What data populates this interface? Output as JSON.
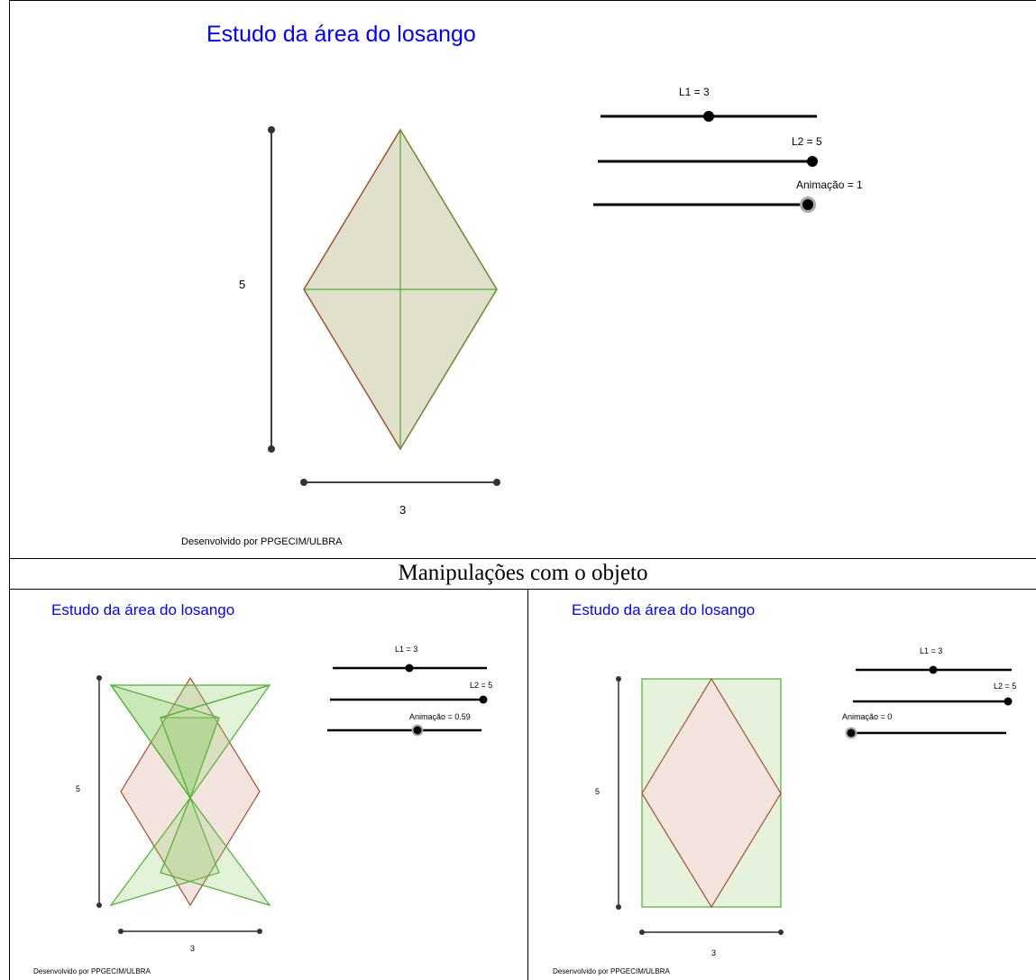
{
  "caption": "Manipulações com o objeto",
  "main_panel": {
    "title": "Estudo da área do losango",
    "credit": "Desenvolvido por PPGECIM/ULBRA",
    "vertical_measure": "5",
    "horizontal_measure": "3",
    "sliders": [
      {
        "label": "L1 = 3",
        "value": 3,
        "min": 0,
        "max": 6
      },
      {
        "label": "L2 = 5",
        "value": 5,
        "min": 0,
        "max": 5
      },
      {
        "label": "Animação = 1",
        "value": 1,
        "min": 0,
        "max": 1
      }
    ]
  },
  "panel_animating": {
    "title": "Estudo da área do losango",
    "credit": "Desenvolvido por PPGECIM/ULBRA",
    "vertical_measure": "5",
    "horizontal_measure": "3",
    "sliders": [
      {
        "label": "L1 = 3",
        "value": 3,
        "min": 0,
        "max": 6
      },
      {
        "label": "L2 = 5",
        "value": 5,
        "min": 0,
        "max": 5
      },
      {
        "label": "Animação = 0.59",
        "value": 0.59,
        "min": 0,
        "max": 1
      }
    ]
  },
  "panel_rectangle": {
    "title": "Estudo da área do losango",
    "credit": "Desenvolvido por PPGECIM/ULBRA",
    "vertical_measure": "5",
    "horizontal_measure": "3",
    "sliders": [
      {
        "label": "L1 = 3",
        "value": 3,
        "min": 0,
        "max": 6
      },
      {
        "label": "L2 = 5",
        "value": 5,
        "min": 0,
        "max": 5
      },
      {
        "label": "Animação = 0",
        "value": 0,
        "min": 0,
        "max": 1
      }
    ]
  },
  "colors": {
    "title": "#0000ff",
    "rhombus_stroke": "#a0522d",
    "rhombus_fill_pink": "#f4e4df",
    "rhombus_fill_olive": "#e0e0cd",
    "triangle_stroke": "#4caf2f",
    "triangle_fill": "#e6f2dc"
  },
  "icons": {
    "slider_knob": "circle-knob-icon",
    "segment_endpoint": "point-icon"
  }
}
